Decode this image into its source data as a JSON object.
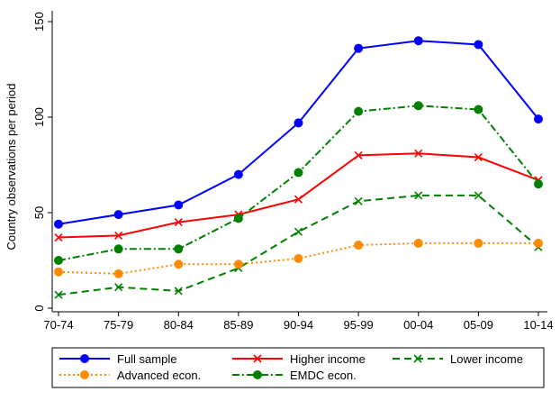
{
  "chart_data": {
    "type": "line",
    "categories": [
      "70-74",
      "75-79",
      "80-84",
      "85-89",
      "90-94",
      "95-99",
      "00-04",
      "05-09",
      "10-14"
    ],
    "ylabel": "Country observations per period",
    "xlabel": "",
    "ylim": [
      0,
      150
    ],
    "yticks": [
      0,
      50,
      100,
      150
    ],
    "grid": false,
    "legend_position": "bottom",
    "series": [
      {
        "name": "Full sample",
        "values": [
          44,
          49,
          54,
          70,
          97,
          136,
          140,
          138,
          99
        ],
        "color": "#0000ff",
        "dash": "solid",
        "marker": "circle"
      },
      {
        "name": "Higher income",
        "values": [
          37,
          38,
          45,
          49,
          57,
          80,
          81,
          79,
          67
        ],
        "color": "#ff0000",
        "dash": "solid",
        "marker": "x"
      },
      {
        "name": "Lower income",
        "values": [
          7,
          11,
          9,
          21,
          40,
          56,
          59,
          59,
          32
        ],
        "color": "#008000",
        "dash": "long",
        "marker": "x"
      },
      {
        "name": "Advanced econ.",
        "values": [
          19,
          18,
          23,
          23,
          26,
          33,
          34,
          34,
          34
        ],
        "color": "#ff8c00",
        "dash": "dot",
        "marker": "circle"
      },
      {
        "name": "EMDC econ.",
        "values": [
          25,
          31,
          31,
          47,
          71,
          103,
          106,
          104,
          65
        ],
        "color": "#008000",
        "dash": "dashdot",
        "marker": "circle"
      }
    ]
  }
}
